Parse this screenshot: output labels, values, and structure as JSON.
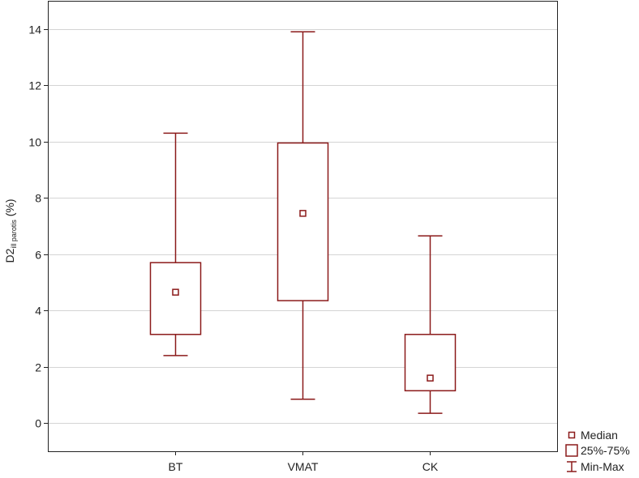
{
  "chart_data": {
    "type": "box",
    "categories": [
      "BT",
      "VMAT",
      "CK"
    ],
    "boxes": [
      {
        "category": "BT",
        "min": 2.4,
        "q1": 3.15,
        "median": 4.65,
        "q3": 5.7,
        "max": 10.3
      },
      {
        "category": "VMAT",
        "min": 0.85,
        "q1": 4.35,
        "median": 7.45,
        "q3": 9.95,
        "max": 13.9
      },
      {
        "category": "CK",
        "min": 0.35,
        "q1": 1.15,
        "median": 1.6,
        "q3": 3.15,
        "max": 6.65
      }
    ],
    "ylabel_main": "D2",
    "ylabel_sub": "ill parotis",
    "ylabel_unit": " (%)",
    "ylim": [
      -1,
      15
    ],
    "yticks": [
      0,
      2,
      4,
      6,
      8,
      10,
      12,
      14
    ],
    "grid": true,
    "legend": {
      "placement": "bottom-right",
      "items": [
        {
          "symbol": "median",
          "label": "Median"
        },
        {
          "symbol": "box",
          "label": "25%-75%"
        },
        {
          "symbol": "whisker",
          "label": "Min-Max"
        }
      ]
    },
    "colors": {
      "box": "#8b1a1a",
      "grid": "#d4d4d4",
      "axis": "#222222"
    }
  }
}
